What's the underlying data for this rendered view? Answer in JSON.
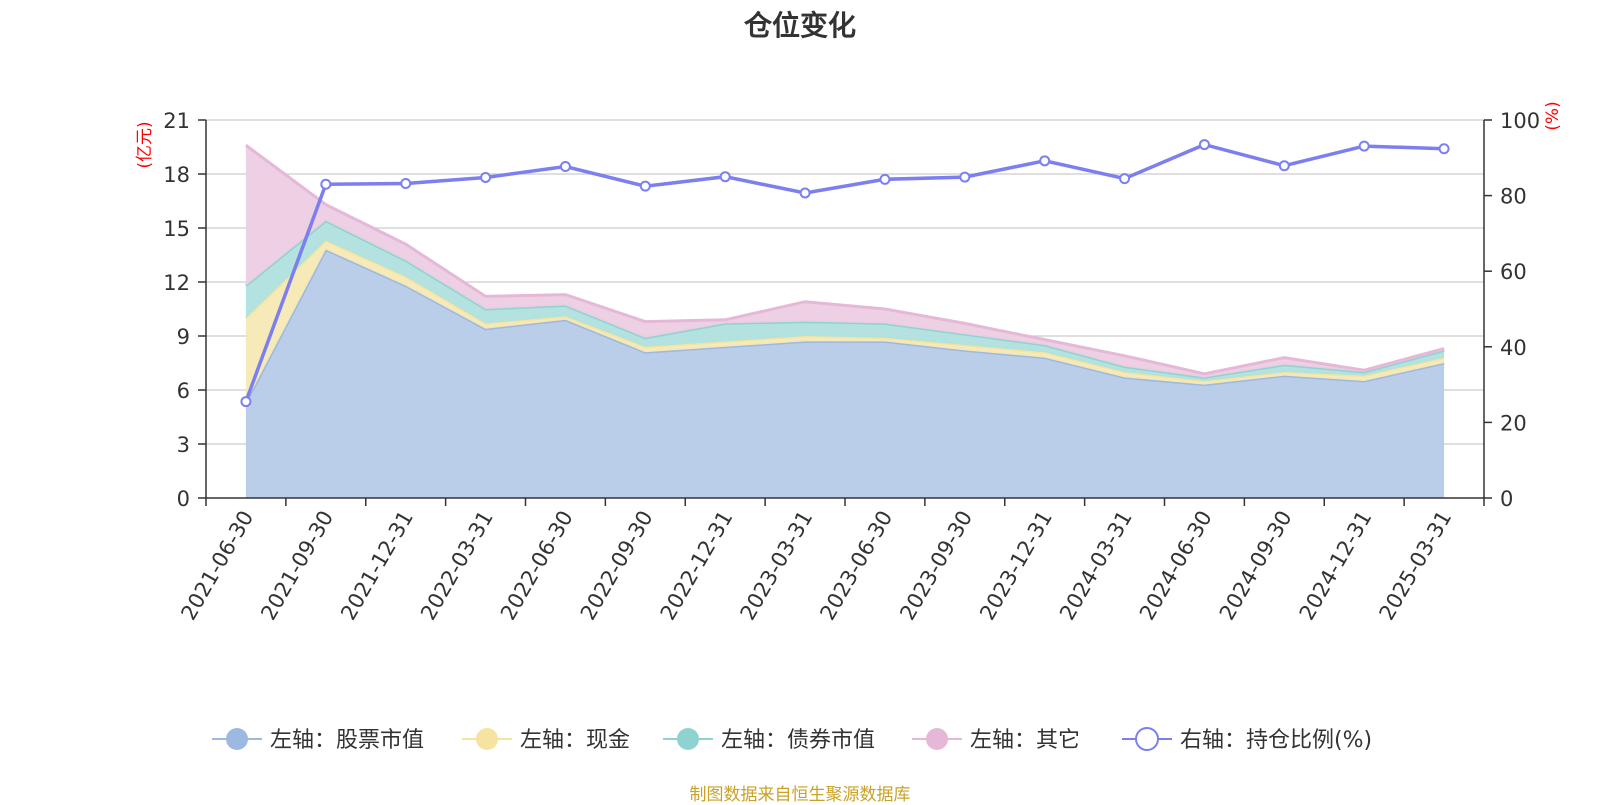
{
  "chart_data": {
    "type": "area",
    "title": "仓位变化",
    "categories": [
      "2021-06-30",
      "2021-09-30",
      "2021-12-31",
      "2022-03-31",
      "2022-06-30",
      "2022-09-30",
      "2022-12-31",
      "2023-03-31",
      "2023-06-30",
      "2023-09-30",
      "2023-12-31",
      "2024-03-31",
      "2024-06-30",
      "2024-09-30",
      "2024-12-31",
      "2025-03-31"
    ],
    "y_left": {
      "unit": "(亿元)",
      "ticks": [
        "0",
        "3",
        "6",
        "9",
        "12",
        "15",
        "18",
        "21"
      ],
      "ylim": [
        0,
        21
      ]
    },
    "y_right": {
      "unit": "(%)",
      "ticks": [
        "0",
        "20",
        "40",
        "60",
        "80",
        "100"
      ],
      "ylim": [
        0,
        100
      ]
    },
    "stacked": true,
    "series": [
      {
        "name": "左轴：股票市值",
        "axis": "left",
        "type": "area",
        "color": "#b6cbe9",
        "line_color": "#9db8e1",
        "values": [
          5.3,
          13.8,
          11.8,
          9.4,
          9.9,
          8.1,
          8.4,
          8.7,
          8.7,
          8.2,
          7.8,
          6.7,
          6.3,
          6.8,
          6.5,
          7.5
        ]
      },
      {
        "name": "左轴：现金",
        "axis": "left",
        "type": "area",
        "color": "#f7e9b5",
        "line_color": "#f6e3a0",
        "values": [
          4.7,
          0.5,
          0.5,
          0.3,
          0.2,
          0.3,
          0.3,
          0.3,
          0.2,
          0.3,
          0.3,
          0.3,
          0.2,
          0.2,
          0.3,
          0.3
        ]
      },
      {
        "name": "左轴：债券市值",
        "axis": "left",
        "type": "area",
        "color": "#afe0de",
        "line_color": "#8fd3d0",
        "values": [
          1.8,
          1.1,
          0.9,
          0.8,
          0.6,
          0.5,
          1.0,
          0.8,
          0.8,
          0.6,
          0.4,
          0.3,
          0.2,
          0.4,
          0.2,
          0.4
        ]
      },
      {
        "name": "左轴：其它",
        "axis": "left",
        "type": "area",
        "color": "#eccde3",
        "line_color": "#e6b8d7",
        "values": [
          7.8,
          0.9,
          0.9,
          0.7,
          0.6,
          0.9,
          0.2,
          1.1,
          0.8,
          0.6,
          0.3,
          0.6,
          0.2,
          0.4,
          0.1,
          0.1
        ]
      },
      {
        "name": "右轴：持仓比例(%)",
        "axis": "right",
        "type": "line",
        "color": "#7b7ff0",
        "values": [
          25.5,
          83.0,
          83.2,
          84.8,
          87.7,
          82.5,
          85.0,
          80.7,
          84.3,
          84.9,
          89.2,
          84.5,
          93.5,
          87.9,
          93.1,
          92.4
        ]
      }
    ],
    "legend": {
      "position": "bottom",
      "items": [
        "左轴：股票市值",
        "左轴：现金",
        "左轴：债券市值",
        "左轴：其它",
        "右轴：持仓比例(%)"
      ]
    },
    "grid": true
  },
  "footer": {
    "source": "制图数据来自恒生聚源数据库"
  }
}
